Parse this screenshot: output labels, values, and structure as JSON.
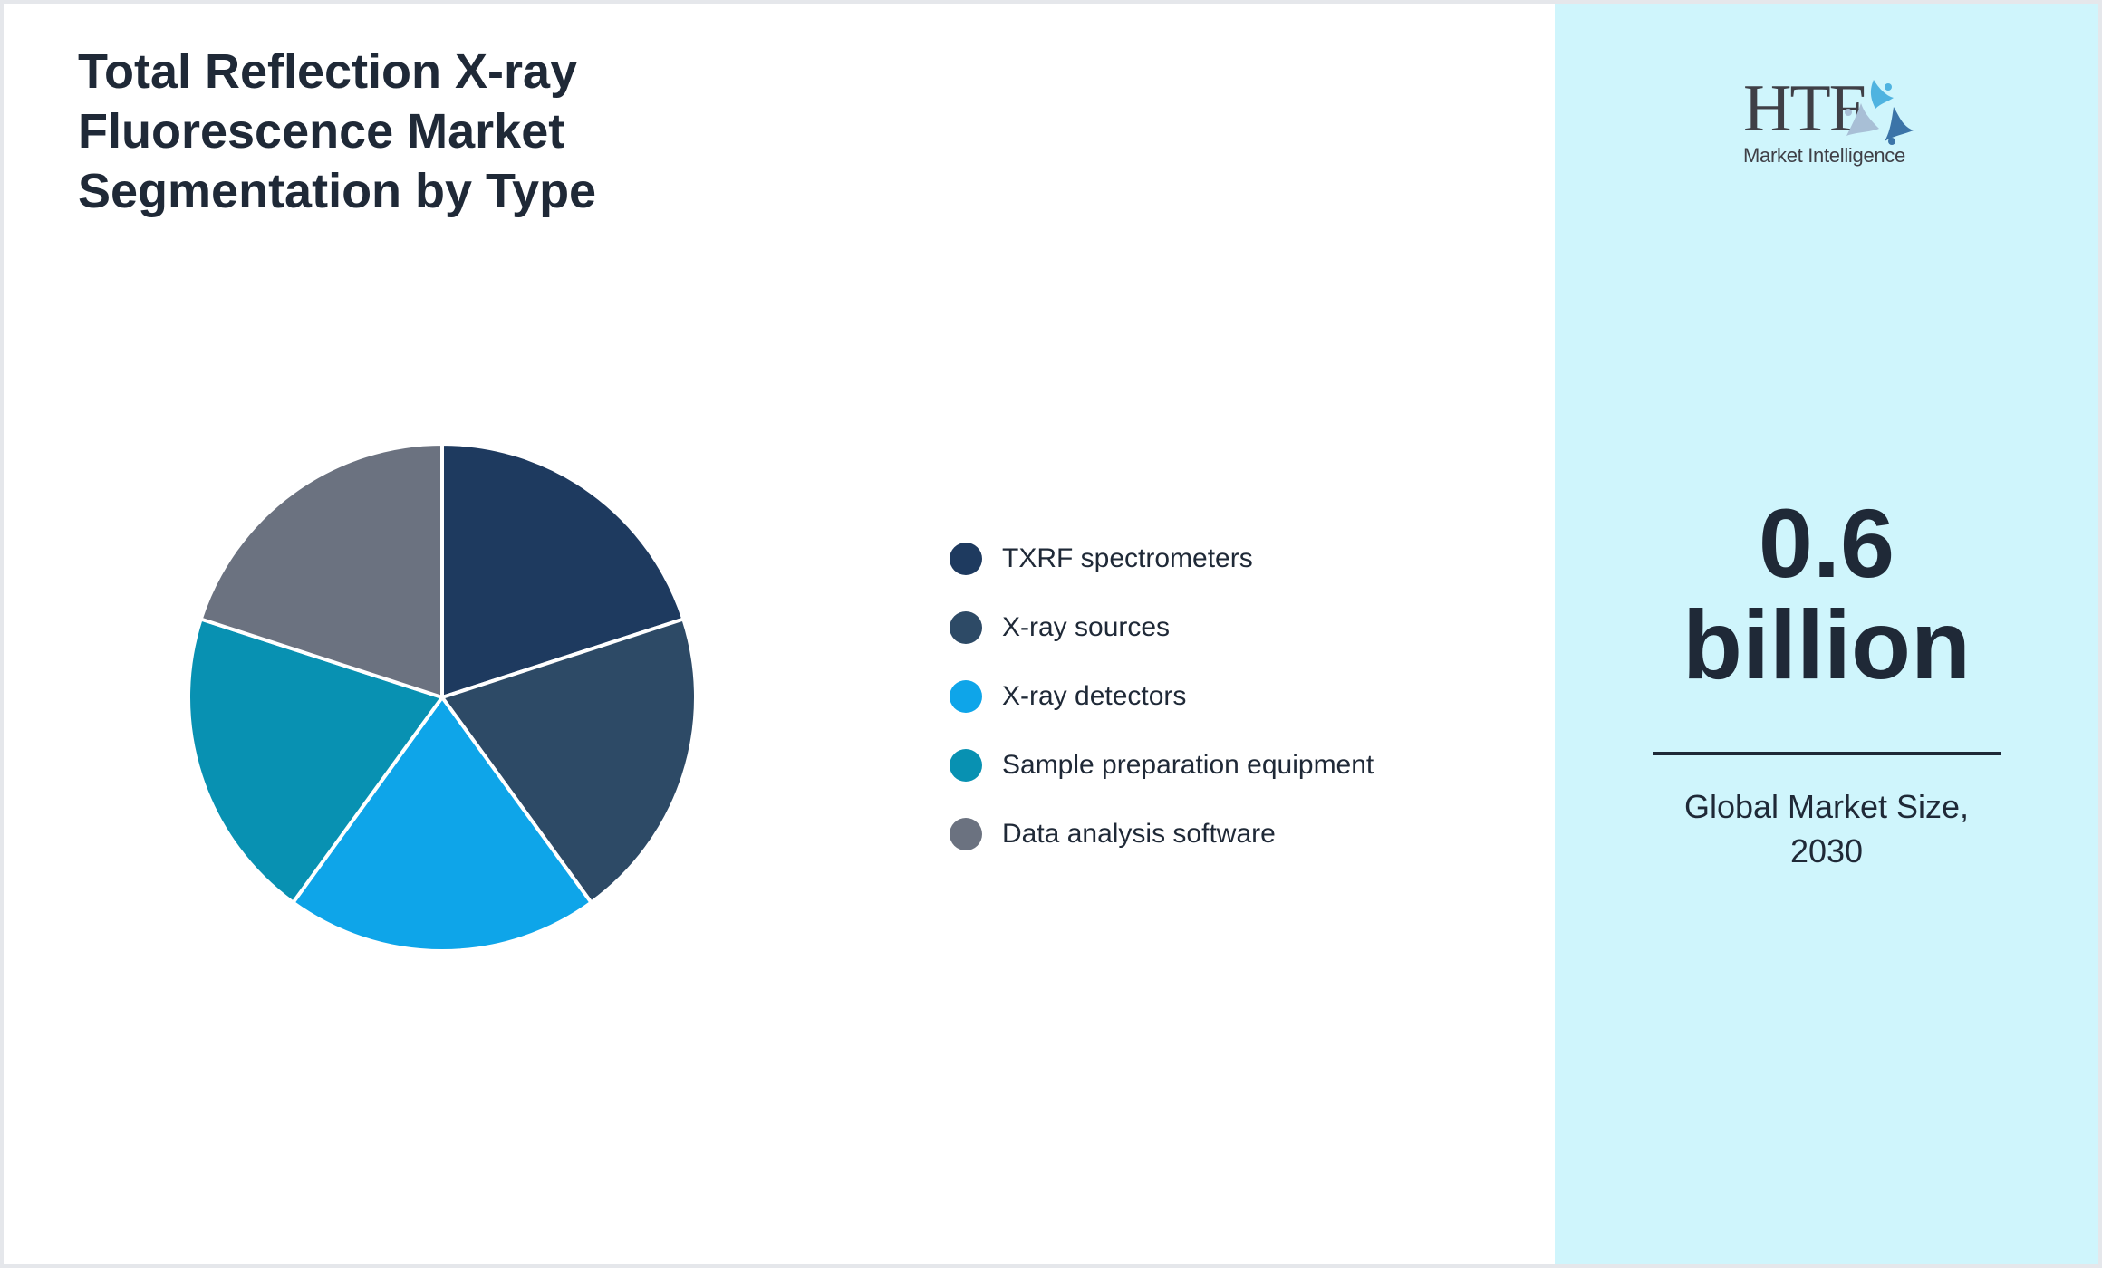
{
  "title": {
    "lines": [
      "Total Reflection X-ray",
      "Fluorescence Market",
      "Segmentation by Type"
    ]
  },
  "logo": {
    "mark": "HTF",
    "subtitle": "Market Intelligence"
  },
  "metric": {
    "value": "0.6",
    "unit": "billion",
    "caption_lines": [
      "Global Market Size,",
      "2030"
    ]
  },
  "colors": {
    "txrf_spectrometers": "#1e3a5f",
    "xray_sources": "#2d4a66",
    "xray_detectors": "#0ea5e9",
    "sample_preparation_equipment": "#0891b2",
    "data_analysis_software": "#6b7280",
    "side_panel_bg": "#cff5fc",
    "text": "#1f2937"
  },
  "legend": [
    {
      "label": "TXRF spectrometers",
      "color": "#1e3a5f"
    },
    {
      "label": "X-ray sources",
      "color": "#2d4a66"
    },
    {
      "label": "X-ray detectors",
      "color": "#0ea5e9"
    },
    {
      "label": "Sample preparation equipment",
      "color": "#0891b2"
    },
    {
      "label": "Data analysis software",
      "color": "#6b7280"
    }
  ],
  "chart_data": {
    "type": "pie",
    "title": "Total Reflection X-ray Fluorescence Market Segmentation by Type",
    "categories": [
      "TXRF spectrometers",
      "X-ray sources",
      "X-ray detectors",
      "Sample preparation equipment",
      "Data analysis software"
    ],
    "values": [
      20,
      20,
      20,
      20,
      20
    ],
    "colors": [
      "#1e3a5f",
      "#2d4a66",
      "#0ea5e9",
      "#0891b2",
      "#6b7280"
    ],
    "start_angle": "top (12 o'clock), clockwise",
    "legend_position": "right",
    "xlabel": "",
    "ylabel": "",
    "annotations": [
      "0.6 billion",
      "Global Market Size, 2030"
    ]
  }
}
